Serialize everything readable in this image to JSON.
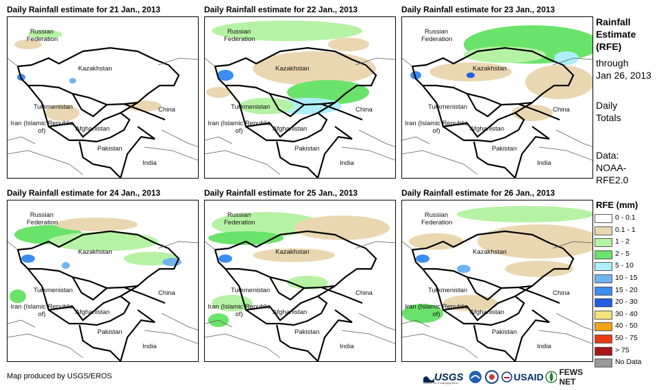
{
  "panels": [
    {
      "title": "Daily Rainfall estimate for 21 Jan., 2013"
    },
    {
      "title": "Daily Rainfall estimate for 22 Jan., 2013"
    },
    {
      "title": "Daily Rainfall estimate for 23 Jan., 2013"
    },
    {
      "title": "Daily Rainfall estimate for 24 Jan., 2013"
    },
    {
      "title": "Daily Rainfall estimate for 25 Jan., 2013"
    },
    {
      "title": "Daily Rainfall estimate for 26 Jan., 2013"
    }
  ],
  "map_labels": {
    "russia": "Russian Federation",
    "kazakhstan": "Kazakhstan",
    "turkmenistan": "Turkmenistan",
    "iran": "Iran (Islamic Republic of)",
    "afghanistan": "Afghanistan",
    "pakistan": "Pakistan",
    "china": "China",
    "india": "India"
  },
  "side_info": {
    "heading": "Rainfall Estimate (RFE)",
    "through": "through",
    "date": "Jan 26, 2013",
    "totals": "Daily Totals",
    "data_label": "Data:",
    "data_source": "NOAA-RFE2.0"
  },
  "legend": {
    "title": "RFE (mm)",
    "items": [
      {
        "label": "0 - 0.1",
        "color": "#ffffff"
      },
      {
        "label": "0.1 - 1",
        "color": "#ead7b2"
      },
      {
        "label": "1 - 2",
        "color": "#b6f2a4"
      },
      {
        "label": "2 - 5",
        "color": "#6ae36a"
      },
      {
        "label": "5 - 10",
        "color": "#aeeefb"
      },
      {
        "label": "10 - 15",
        "color": "#6fb3f2"
      },
      {
        "label": "15 - 20",
        "color": "#3d8cf0"
      },
      {
        "label": "20 - 30",
        "color": "#1f5fe0"
      },
      {
        "label": "30 - 40",
        "color": "#f7e17a"
      },
      {
        "label": "40 - 50",
        "color": "#f4a21a"
      },
      {
        "label": "50 - 75",
        "color": "#e93a14"
      },
      {
        "label": "> 75",
        "color": "#a81818"
      },
      {
        "label": "No Data",
        "color": "#9a9a9a"
      }
    ]
  },
  "footer": {
    "credit": "Map produced by USGS/EROS",
    "usgs": "USGS",
    "usgs_tagline": "science for a changing world",
    "usaid": "USAID",
    "fewsnet": "FEWS NET"
  }
}
